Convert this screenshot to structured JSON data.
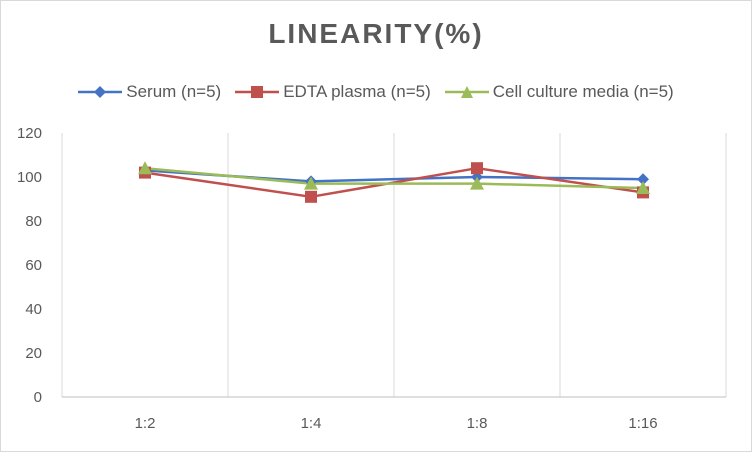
{
  "chart_data": {
    "type": "line",
    "title": "LINEARITY(%)",
    "categories": [
      "1:2",
      "1:4",
      "1:8",
      "1:16"
    ],
    "series": [
      {
        "name": "Serum (n=5)",
        "values": [
          103,
          98,
          100,
          99
        ],
        "color": "#4472c4",
        "marker": "diamond"
      },
      {
        "name": "EDTA plasma (n=5)",
        "values": [
          102,
          91,
          104,
          93
        ],
        "color": "#c0504d",
        "marker": "square"
      },
      {
        "name": "Cell culture media (n=5)",
        "values": [
          104,
          97,
          97,
          95
        ],
        "color": "#9bbb59",
        "marker": "triangle"
      }
    ],
    "ylim": [
      0,
      120
    ],
    "yticks": [
      0,
      20,
      40,
      60,
      80,
      100,
      120
    ],
    "grid": "vertical",
    "legend_position": "top"
  }
}
